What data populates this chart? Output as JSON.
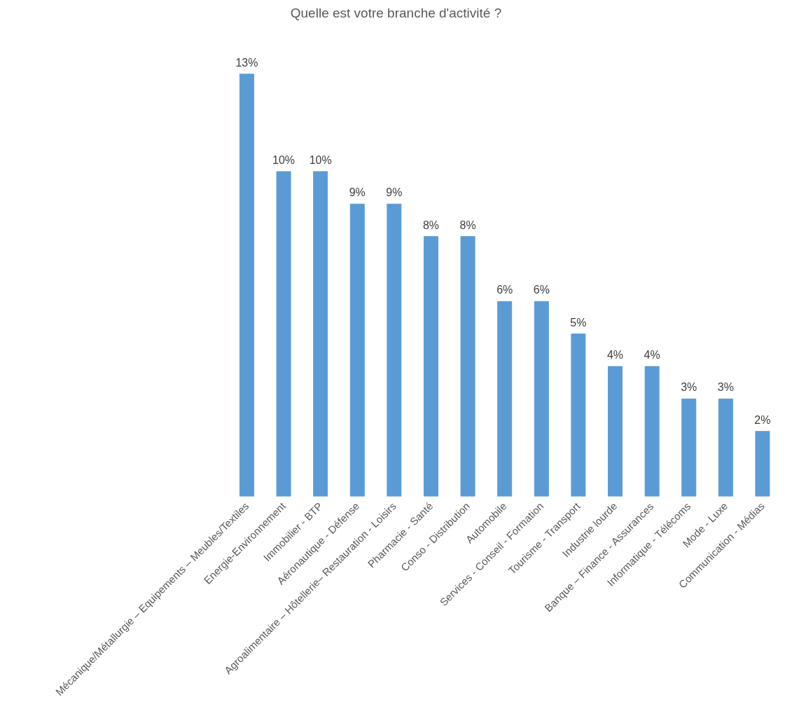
{
  "chart_data": {
    "type": "bar",
    "title": "Quelle est votre branche d'activité ?",
    "categories": [
      "Mécanique/Métallurgie – Equipements – Meubles/Textiles",
      "Energie-Environnement",
      "Immobilier - BTP",
      "Aéronautique - Défense",
      "Agroalimentaire – Hôtellerie– Restauration - Loisirs",
      "Pharmacie - Santé",
      "Conso - Distribution",
      "Automobile",
      "Services - Conseil - Formation",
      "Tourisme - Transport",
      "Industrie lourde",
      "Banque – Finance - Assurances",
      "Informatique - Télécoms",
      "Mode - Luxe",
      "Communication - Médias"
    ],
    "values": [
      13,
      10,
      10,
      9,
      9,
      8,
      8,
      6,
      6,
      5,
      4,
      4,
      3,
      3,
      2
    ],
    "value_labels": [
      "13%",
      "10%",
      "10%",
      "9%",
      "9%",
      "8%",
      "8%",
      "6%",
      "6%",
      "5%",
      "4%",
      "4%",
      "3%",
      "3%",
      "2%"
    ],
    "color": "#5b9bd5"
  }
}
